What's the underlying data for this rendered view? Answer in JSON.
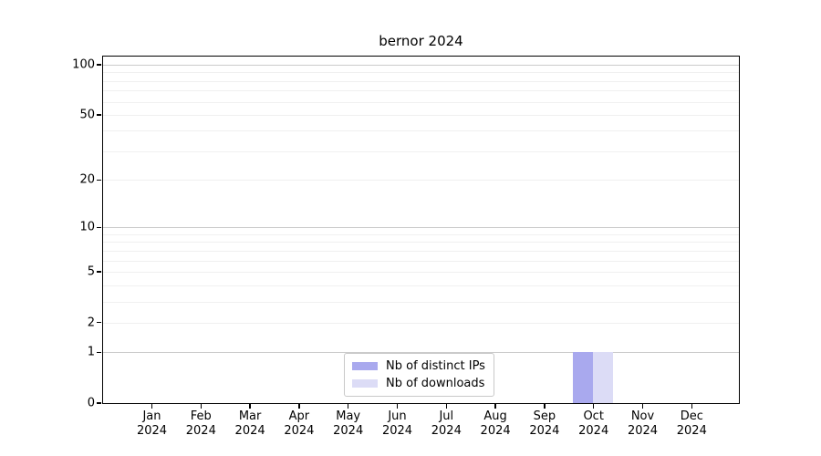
{
  "chart_data": {
    "type": "bar",
    "title": "bernor 2024",
    "categories": [
      "Jan",
      "Feb",
      "Mar",
      "Apr",
      "May",
      "Jun",
      "Jul",
      "Aug",
      "Sep",
      "Oct",
      "Nov",
      "Dec"
    ],
    "category_year": "2024",
    "series": [
      {
        "name": "Nb of distinct IPs",
        "color": "#a9a9ee",
        "values": [
          0,
          0,
          0,
          0,
          0,
          0,
          0,
          0,
          0,
          1,
          0,
          0
        ]
      },
      {
        "name": "Nb of downloads",
        "color": "#dcdcf6",
        "values": [
          0,
          0,
          0,
          0,
          0,
          0,
          0,
          0,
          0,
          1,
          0,
          0
        ]
      }
    ],
    "yscale": "log1p",
    "yticks": [
      0,
      1,
      2,
      5,
      10,
      20,
      50,
      100
    ],
    "ylim": [
      0,
      112
    ],
    "xlabel": "",
    "ylabel": "",
    "grid": {
      "axis": "y",
      "major_color": "#cbcbcb",
      "minor_color": "#f0f0f0"
    },
    "legend": {
      "position": "lower center inside"
    },
    "axis_color": "#000000"
  }
}
